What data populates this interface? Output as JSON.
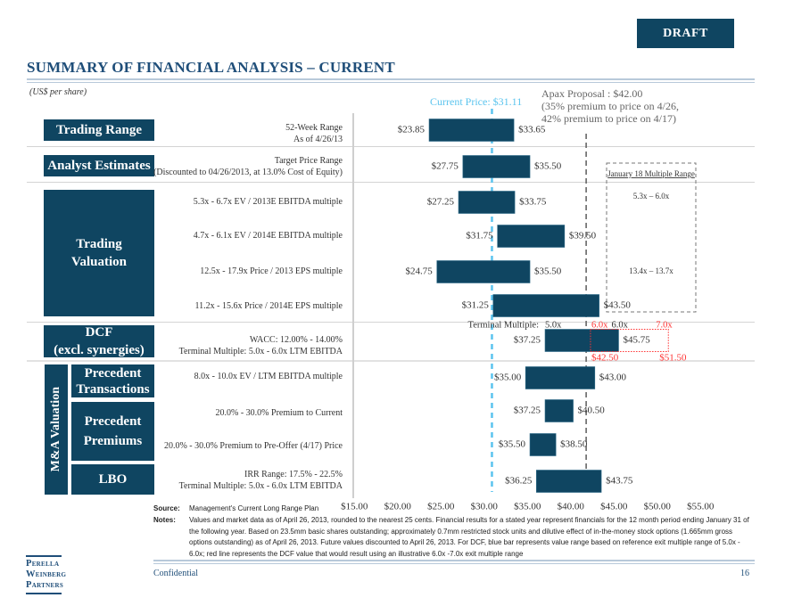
{
  "header": {
    "draft_badge": "DRAFT",
    "title": "SUMMARY OF FINANCIAL ANALYSIS – CURRENT",
    "units": "(US$ per share)"
  },
  "annotations": {
    "current_price_label": "Current Price: $31.11",
    "apax_lines": [
      "Apax Proposal : $42.00",
      "(35% premium to price on 4/26,",
      "42% premium to price on 4/17)"
    ],
    "jan18_title": "January 18 Multiple Range",
    "jan18_ebitda": "5.3x – 6.0x",
    "jan18_eps": "13.4x – 13.7x",
    "terminal_multiple_label": "Terminal Multiple:",
    "tm_blue_low": "5.0x",
    "tm_red_low": "6.0x",
    "tm_blue_high": "6.0x",
    "tm_red_high": "7.0x",
    "red_low_value": "$42.50",
    "red_high_value": "$51.50"
  },
  "categories": {
    "trading_range": "Trading Range",
    "analyst_estimates": "Analyst Estimates",
    "trading_valuation": "Trading Valuation",
    "dcf_line1": "DCF",
    "dcf_line2": "(excl. synergies)",
    "mna_valuation": "M&A Valuation",
    "precedent_transactions_1": "Precedent",
    "precedent_transactions_2": "Transactions",
    "precedent_premiums_1": "Precedent",
    "precedent_premiums_2": "Premiums",
    "lbo": "LBO"
  },
  "descriptions": [
    [
      "52-Week Range",
      "As of 4/26/13"
    ],
    [
      "Target Price Range",
      "(Discounted to 04/26/2013, at 13.0% Cost of Equity)"
    ],
    [
      "5.3x - 6.7x EV / 2013E EBITDA multiple"
    ],
    [
      "4.7x - 6.1x EV / 2014E EBITDA multiple"
    ],
    [
      "12.5x - 17.9x Price / 2013 EPS multiple"
    ],
    [
      "11.2x - 15.6x Price / 2014E EPS multiple"
    ],
    [
      "WACC: 12.00% - 14.00%",
      "Terminal Multiple: 5.0x - 6.0x LTM EBITDA"
    ],
    [
      "8.0x - 10.0x EV / LTM EBITDA  multiple"
    ],
    [
      "20.0% - 30.0% Premium to Current"
    ],
    [
      "20.0% - 30.0% Premium to Pre-Offer (4/17) Price"
    ],
    [
      "IRR Range: 17.5% - 22.5%",
      "Terminal Multiple: 5.0x - 6.0x LTM EBITDA"
    ]
  ],
  "chart_data": {
    "type": "bar",
    "subtype": "floating-range-horizontal",
    "title": "Summary of Financial Analysis – Current",
    "xlabel": "US$ per share",
    "xlim": [
      15,
      55
    ],
    "xticks": [
      15,
      20,
      25,
      30,
      35,
      40,
      45,
      50,
      55
    ],
    "xtick_labels": [
      "$15.00",
      "$20.00",
      "$25.00",
      "$30.00",
      "$35.00",
      "$40.00",
      "$45.00",
      "$50.00",
      "$55.00"
    ],
    "bar_color": "#0f4561",
    "ranges": [
      {
        "name": "52-Week Range",
        "low": 23.85,
        "high": 33.65,
        "low_label": "$23.85",
        "high_label": "$33.65"
      },
      {
        "name": "Analyst Target Price Range",
        "low": 27.75,
        "high": 35.5,
        "low_label": "$27.75",
        "high_label": "$35.50"
      },
      {
        "name": "EV / 2013E EBITDA",
        "low": 27.25,
        "high": 33.75,
        "low_label": "$27.25",
        "high_label": "$33.75"
      },
      {
        "name": "EV / 2014E EBITDA",
        "low": 31.75,
        "high": 39.5,
        "low_label": "$31.75",
        "high_label": "$39.50"
      },
      {
        "name": "Price / 2013 EPS",
        "low": 24.75,
        "high": 35.5,
        "low_label": "$24.75",
        "high_label": "$35.50"
      },
      {
        "name": "Price / 2014E EPS",
        "low": 31.25,
        "high": 43.5,
        "low_label": "$31.25",
        "high_label": "$43.50"
      },
      {
        "name": "DCF",
        "low": 37.25,
        "high": 45.75,
        "low_label": "$37.25",
        "high_label": "$45.75"
      },
      {
        "name": "Precedent Transactions",
        "low": 35.0,
        "high": 43.0,
        "low_label": "$35.00",
        "high_label": "$43.00"
      },
      {
        "name": "Premium to Current",
        "low": 37.25,
        "high": 40.5,
        "low_label": "$37.25",
        "high_label": "$40.50"
      },
      {
        "name": "Premium to Pre-Offer",
        "low": 35.5,
        "high": 38.5,
        "low_label": "$35.50",
        "high_label": "$38.50"
      },
      {
        "name": "LBO",
        "low": 36.25,
        "high": 43.75,
        "low_label": "$36.25",
        "high_label": "$43.75"
      }
    ],
    "dcf_illustrative_range": {
      "low": 42.5,
      "high": 51.5,
      "color": "#ff3333"
    },
    "reference_lines": [
      {
        "name": "Current Price",
        "value": 31.11,
        "color": "#5bc4ee",
        "style": "dashed"
      },
      {
        "name": "Apax Proposal",
        "value": 42.0,
        "color": "#666666",
        "style": "dashed"
      }
    ]
  },
  "footer": {
    "source_label": "Source:",
    "source_text": "Management's Current Long Range Plan",
    "notes_label": "Notes:",
    "notes_lines": [
      "Values and market data as of April 26, 2013, rounded to the nearest 25 cents. Financial results for a stated year represent financials for the 12 month period ending January 31 of",
      "the following year. Based on 23.5mm basic shares outstanding; approximately 0.7mm restricted stock units and dilutive effect of in-the-money stock options (1.665mm gross",
      "options outstanding) as of April 26, 2013. Future values discounted to April 26, 2013. For DCF, blue bar represents value range based on reference exit multiple range of 5.0x -",
      "6.0x; red line represents the DCF value that would result using an illustrative 6.0x -7.0x exit multiple range"
    ],
    "confidential": "Confidential",
    "page_number": "16",
    "logo_lines": [
      "Perella",
      "Weinberg",
      "Partners"
    ]
  }
}
